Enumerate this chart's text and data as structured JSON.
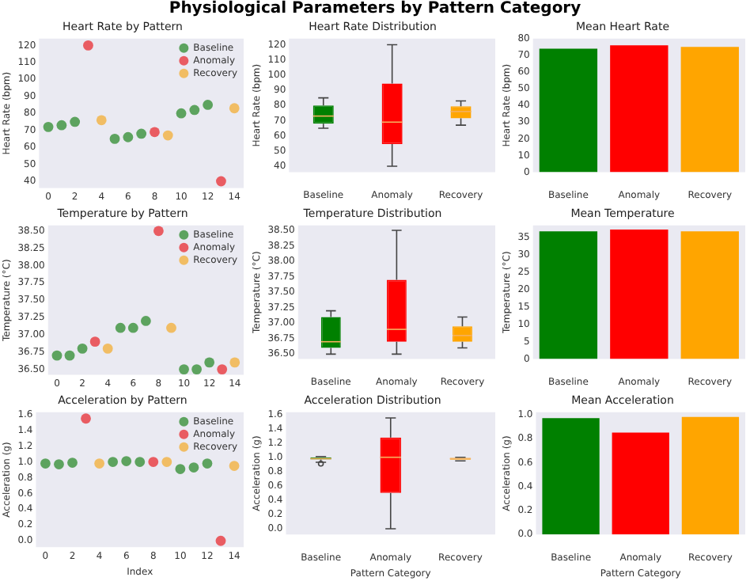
{
  "chart_data": [
    {
      "type": "other",
      "title": "Physiological Parameters by Pattern Category"
    },
    {
      "type": "scatter",
      "title": "Heart Rate by Pattern",
      "ylabel": "Heart Rate (bpm)",
      "xlim": [
        -0.7,
        14.7
      ],
      "xticks": [
        0,
        2,
        4,
        6,
        8,
        10,
        12,
        14
      ],
      "ylim": [
        36,
        124
      ],
      "yticks": [
        40,
        50,
        60,
        70,
        80,
        90,
        100,
        110,
        120
      ],
      "legend": "top right",
      "marker": "circle",
      "series": [
        {
          "name": "Baseline",
          "color": "#3a913a",
          "x": [
            0,
            1,
            2,
            5,
            6,
            7,
            10,
            11,
            12
          ],
          "values": [
            72,
            73,
            75,
            65,
            66,
            68,
            80,
            82,
            85
          ]
        },
        {
          "name": "Anomaly",
          "color": "#e8383d",
          "x": [
            3,
            8,
            13
          ],
          "values": [
            120,
            69,
            40
          ]
        },
        {
          "name": "Recovery",
          "color": "#f2b140",
          "x": [
            4,
            9,
            14
          ],
          "values": [
            76,
            67,
            83
          ]
        }
      ]
    },
    {
      "type": "box",
      "title": "Heart Rate Distribution",
      "ylabel": "Heart Rate (bpm)",
      "categories": [
        "Baseline",
        "Anomaly",
        "Recovery"
      ],
      "colors": [
        "#008000",
        "#ff0000",
        "#ffa500"
      ],
      "ylim": [
        36,
        124
      ],
      "yticks": [
        40,
        50,
        60,
        70,
        80,
        90,
        100,
        110,
        120
      ],
      "boxes": [
        {
          "low": 65,
          "q1": 68,
          "median": 73,
          "q3": 80,
          "high": 85
        },
        {
          "low": 40,
          "q1": 54.5,
          "median": 69,
          "q3": 94.5,
          "high": 120
        },
        {
          "low": 67,
          "q1": 71.5,
          "median": 76,
          "q3": 79.5,
          "high": 83
        }
      ]
    },
    {
      "type": "bar",
      "title": "Mean Heart Rate",
      "ylabel": "Heart Rate (bpm)",
      "categories": [
        "Baseline",
        "Anomaly",
        "Recovery"
      ],
      "values": [
        74,
        76,
        75
      ],
      "colors": [
        "#008000",
        "#ff0000",
        "#ffa500"
      ],
      "ylim": [
        0,
        80
      ],
      "yticks": [
        0,
        10,
        20,
        30,
        40,
        50,
        60,
        70,
        80
      ]
    },
    {
      "type": "scatter",
      "title": "Temperature by Pattern",
      "ylabel": "Temperature (°C)",
      "xlim": [
        -0.7,
        14.7
      ],
      "xticks": [
        0,
        2,
        4,
        6,
        8,
        10,
        12,
        14
      ],
      "ylim": [
        36.42,
        38.58
      ],
      "yticks": [
        {
          "value": 36.5,
          "label": "36.50"
        },
        {
          "value": 36.75,
          "label": "36.75"
        },
        {
          "value": 37,
          "label": "37.00"
        },
        {
          "value": 37.25,
          "label": "37.25"
        },
        {
          "value": 37.5,
          "label": "37.50"
        },
        {
          "value": 37.75,
          "label": "37.75"
        },
        {
          "value": 38,
          "label": "38.00"
        },
        {
          "value": 38.25,
          "label": "38.25"
        },
        {
          "value": 38.5,
          "label": "38.50"
        }
      ],
      "legend": "top right",
      "marker": "circle",
      "series": [
        {
          "name": "Baseline",
          "color": "#3a913a",
          "x": [
            0,
            1,
            2,
            5,
            6,
            7,
            10,
            11,
            12
          ],
          "values": [
            36.7,
            36.7,
            36.8,
            37.1,
            37.1,
            37.2,
            36.5,
            36.5,
            36.6
          ]
        },
        {
          "name": "Anomaly",
          "color": "#e8383d",
          "x": [
            3,
            8,
            13
          ],
          "values": [
            36.9,
            38.5,
            36.5
          ]
        },
        {
          "name": "Recovery",
          "color": "#f2b140",
          "x": [
            4,
            9,
            14
          ],
          "values": [
            36.8,
            37.1,
            36.6
          ]
        }
      ]
    },
    {
      "type": "box",
      "title": "Temperature Distribution",
      "ylabel": "Temperature (°C)",
      "categories": [
        "Baseline",
        "Anomaly",
        "Recovery"
      ],
      "colors": [
        "#008000",
        "#ff0000",
        "#ffa500"
      ],
      "ylim": [
        36.42,
        38.58
      ],
      "yticks": [
        {
          "value": 36.5,
          "label": "36.50"
        },
        {
          "value": 36.75,
          "label": "36.75"
        },
        {
          "value": 37,
          "label": "37.00"
        },
        {
          "value": 37.25,
          "label": "37.25"
        },
        {
          "value": 37.5,
          "label": "37.50"
        },
        {
          "value": 37.75,
          "label": "37.75"
        },
        {
          "value": 38,
          "label": "38.00"
        },
        {
          "value": 38.25,
          "label": "38.25"
        },
        {
          "value": 38.5,
          "label": "38.50"
        }
      ],
      "boxes": [
        {
          "low": 36.5,
          "q1": 36.6,
          "median": 36.7,
          "q3": 37.1,
          "high": 37.2
        },
        {
          "low": 36.5,
          "q1": 36.7,
          "median": 36.9,
          "q3": 37.7,
          "high": 38.5
        },
        {
          "low": 36.6,
          "q1": 36.7,
          "median": 36.8,
          "q3": 36.95,
          "high": 37.1
        }
      ]
    },
    {
      "type": "bar",
      "title": "Mean Temperature",
      "ylabel": "Temperature (°C)",
      "categories": [
        "Baseline",
        "Anomaly",
        "Recovery"
      ],
      "values": [
        36.8,
        37.3,
        36.8
      ],
      "colors": [
        "#008000",
        "#ff0000",
        "#ffa500"
      ],
      "ylim": [
        0,
        38.5
      ],
      "yticks": [
        0,
        5,
        10,
        15,
        20,
        25,
        30,
        35
      ]
    },
    {
      "type": "scatter",
      "title": "Acceleration by Pattern",
      "xlabel": "Index",
      "ylabel": "Acceleration (g)",
      "xlim": [
        -0.7,
        14.7
      ],
      "xticks": [
        0,
        2,
        4,
        6,
        8,
        10,
        12,
        14
      ],
      "ylim": [
        -0.08,
        1.63
      ],
      "yticks": [
        {
          "value": 0,
          "label": "0.0"
        },
        {
          "value": 0.2,
          "label": "0.2"
        },
        {
          "value": 0.4,
          "label": "0.4"
        },
        {
          "value": 0.6,
          "label": "0.6"
        },
        {
          "value": 0.8,
          "label": "0.8"
        },
        {
          "value": 1,
          "label": "1.0"
        },
        {
          "value": 1.2,
          "label": "1.2"
        },
        {
          "value": 1.4,
          "label": "1.4"
        },
        {
          "value": 1.6,
          "label": "1.6"
        }
      ],
      "legend": "top right",
      "marker": "circle",
      "series": [
        {
          "name": "Baseline",
          "color": "#3a913a",
          "x": [
            0,
            1,
            2,
            5,
            6,
            7,
            10,
            11,
            12
          ],
          "values": [
            0.98,
            0.97,
            0.99,
            1.0,
            1.01,
            1.0,
            0.91,
            0.93,
            0.98
          ]
        },
        {
          "name": "Anomaly",
          "color": "#e8383d",
          "x": [
            3,
            8,
            13
          ],
          "values": [
            1.55,
            1.0,
            0.0
          ]
        },
        {
          "name": "Recovery",
          "color": "#f2b140",
          "x": [
            4,
            9,
            14
          ],
          "values": [
            0.98,
            1.0,
            0.95
          ]
        }
      ]
    },
    {
      "type": "box",
      "title": "Acceleration Distribution",
      "xlabel": "Pattern Category",
      "ylabel": "Acceleration (g)",
      "categories": [
        "Baseline",
        "Anomaly",
        "Recovery"
      ],
      "colors": [
        "#008000",
        "#ff0000",
        "#ffa500"
      ],
      "ylim": [
        -0.08,
        1.63
      ],
      "yticks": [
        {
          "value": 0,
          "label": "0.0"
        },
        {
          "value": 0.2,
          "label": "0.2"
        },
        {
          "value": 0.4,
          "label": "0.4"
        },
        {
          "value": 0.6,
          "label": "0.6"
        },
        {
          "value": 0.8,
          "label": "0.8"
        },
        {
          "value": 1,
          "label": "1.0"
        },
        {
          "value": 1.2,
          "label": "1.2"
        },
        {
          "value": 1.4,
          "label": "1.4"
        },
        {
          "value": 1.6,
          "label": "1.6"
        }
      ],
      "boxes": [
        {
          "low": 0.93,
          "q1": 0.97,
          "median": 0.98,
          "q3": 1.0,
          "high": 1.01,
          "outliers": [
            0.91
          ]
        },
        {
          "low": 0.0,
          "q1": 0.5,
          "median": 1.0,
          "q3": 1.275,
          "high": 1.55
        },
        {
          "low": 0.95,
          "q1": 0.965,
          "median": 0.98,
          "q3": 0.99,
          "high": 1.0
        }
      ]
    },
    {
      "type": "bar",
      "title": "Mean Acceleration",
      "xlabel": "Pattern Category",
      "ylabel": "Acceleration (g)",
      "categories": [
        "Baseline",
        "Anomaly",
        "Recovery"
      ],
      "values": [
        0.97,
        0.85,
        0.98
      ],
      "colors": [
        "#008000",
        "#ff0000",
        "#ffa500"
      ],
      "ylim": [
        0,
        1.02
      ],
      "yticks": [
        {
          "value": 0,
          "label": "0.0"
        },
        {
          "value": 0.2,
          "label": "0.2"
        },
        {
          "value": 0.4,
          "label": "0.4"
        },
        {
          "value": 0.6,
          "label": "0.6"
        },
        {
          "value": 0.8,
          "label": "0.8"
        },
        {
          "value": 1,
          "label": "1.0"
        }
      ]
    }
  ]
}
